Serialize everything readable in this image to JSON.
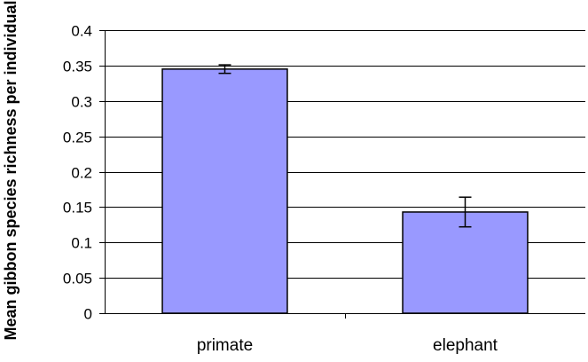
{
  "chart_data": {
    "type": "bar",
    "title": "",
    "xlabel": "",
    "ylabel": "Mean gibbon species richness per individual",
    "ylim": [
      0,
      0.4
    ],
    "yticks": [
      {
        "value": 0,
        "label": "0"
      },
      {
        "value": 0.05,
        "label": "0.05"
      },
      {
        "value": 0.1,
        "label": "0.1"
      },
      {
        "value": 0.15,
        "label": "0.15"
      },
      {
        "value": 0.2,
        "label": "0.2"
      },
      {
        "value": 0.25,
        "label": "0.25"
      },
      {
        "value": 0.3,
        "label": "0.3"
      },
      {
        "value": 0.35,
        "label": "0.35"
      },
      {
        "value": 0.4,
        "label": "0.4"
      }
    ],
    "categories": [
      "primate",
      "elephant"
    ],
    "values": [
      0.345,
      0.143
    ],
    "errors": [
      0.006,
      0.021
    ],
    "grid": true,
    "legend": "none",
    "colors": {
      "bar_fill": "#9999ff",
      "bar_stroke": "#000000",
      "grid": "#000000",
      "axis": "#000000"
    }
  }
}
